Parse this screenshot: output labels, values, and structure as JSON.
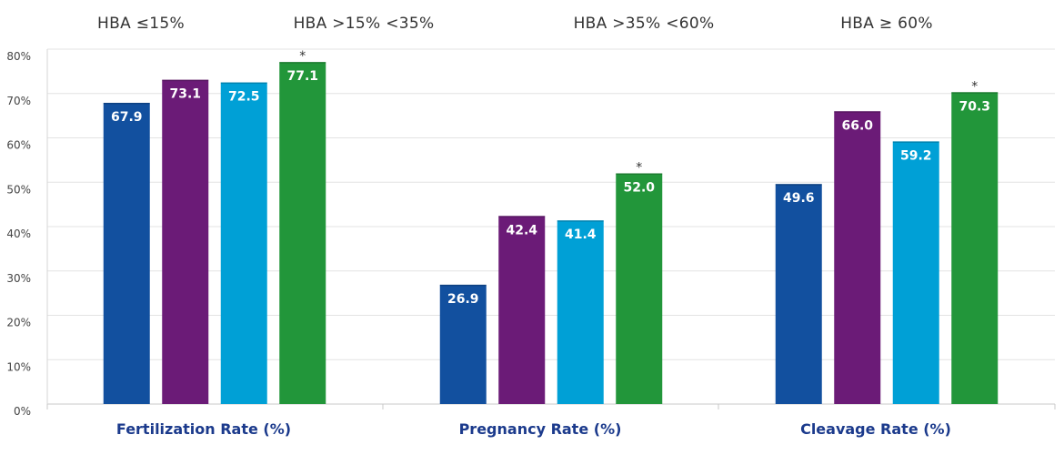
{
  "chart_data": {
    "type": "bar",
    "categories": [
      "Fertilization Rate (%)",
      "Pregnancy Rate (%)",
      "Cleavage Rate (%)"
    ],
    "series": [
      {
        "name": "HBA ≤15%",
        "color": "#12509f",
        "values": [
          67.9,
          26.9,
          49.6
        ]
      },
      {
        "name": "HBA >15%  <35%",
        "color": "#6b1b77",
        "values": [
          73.1,
          42.4,
          66.0
        ]
      },
      {
        "name": "HBA >35%  <60%",
        "color": "#00a0d6",
        "values": [
          72.5,
          41.4,
          59.2
        ]
      },
      {
        "name": "HBA ≥ 60%",
        "color": "#22963a",
        "values": [
          77.1,
          52.0,
          70.3
        ]
      }
    ],
    "data_labels": [
      [
        "67.9",
        "26.9",
        "49.6"
      ],
      [
        "73.1",
        "42.4",
        "66.0"
      ],
      [
        "72.5",
        "41.4",
        "59.2"
      ],
      [
        "77.1",
        "52.0",
        "70.3"
      ]
    ],
    "significance_marker": "*",
    "significant_series": "HBA ≥ 60%",
    "y_ticks": [
      "0%",
      "10%",
      "20%",
      "30%",
      "40%",
      "50%",
      "60%",
      "70%",
      "80%"
    ],
    "ylim": [
      0,
      80
    ],
    "grid": true,
    "legend_placement": "top",
    "category_label_color": "#1b3a8c"
  }
}
